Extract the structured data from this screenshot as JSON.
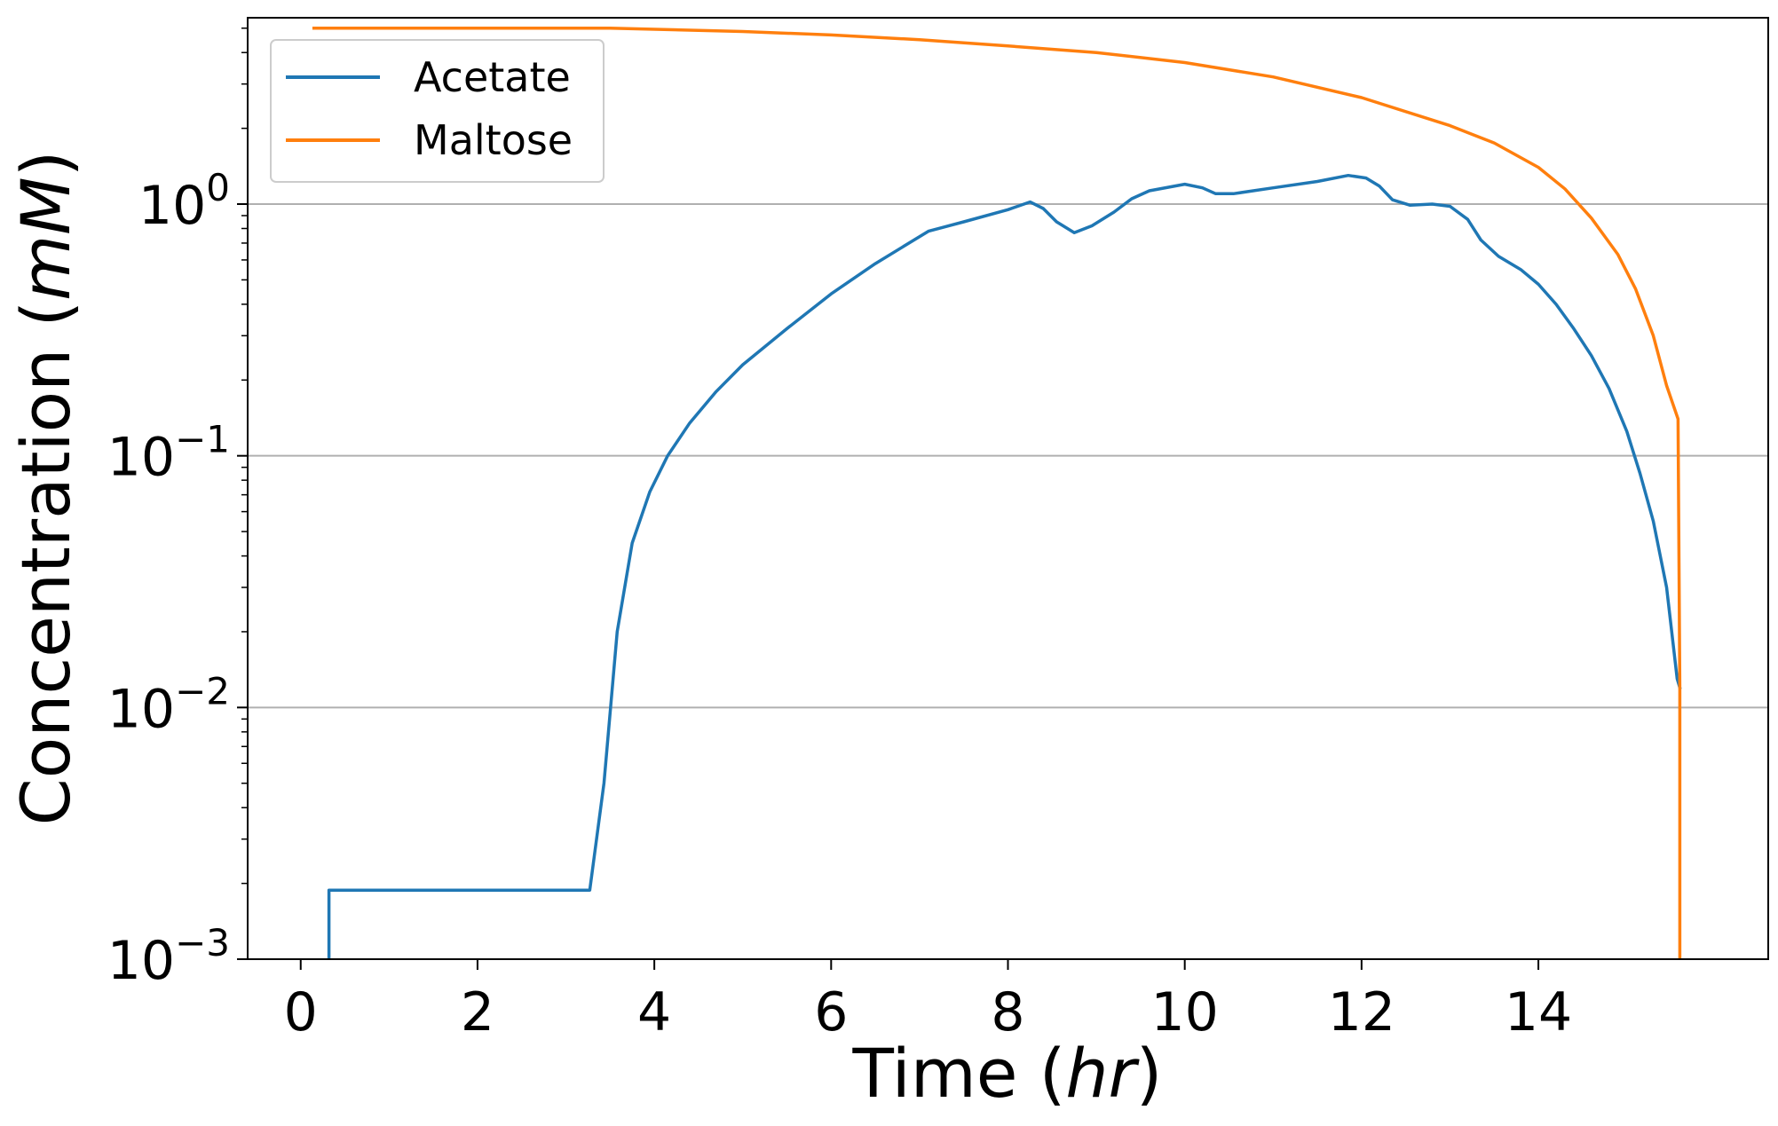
{
  "chart_data": {
    "type": "line",
    "title": "",
    "xlabel": {
      "main": "Time (",
      "italic": "hr",
      "close": ")"
    },
    "ylabel": {
      "main": "Concentration (",
      "italic": "mM",
      "close": ")"
    },
    "xlim": [
      -0.6,
      16.6
    ],
    "ylim": [
      0.001,
      5.5
    ],
    "yscale": "log",
    "xticks": [
      0,
      2,
      4,
      6,
      8,
      10,
      12,
      14
    ],
    "yticks": [
      {
        "value": 0.001,
        "base": "10",
        "exp": "−3"
      },
      {
        "value": 0.01,
        "base": "10",
        "exp": "−2"
      },
      {
        "value": 0.1,
        "base": "10",
        "exp": "−1"
      },
      {
        "value": 1,
        "base": "10",
        "exp": "0"
      }
    ],
    "grid": {
      "y_major": true,
      "x": false
    },
    "legend": "top-left",
    "series": [
      {
        "name": "Acetate",
        "color": "#1f77b4",
        "points": [
          [
            0.32,
            0.001
          ],
          [
            0.32,
            0.00188
          ],
          [
            1.0,
            0.00188
          ],
          [
            2.0,
            0.00188
          ],
          [
            3.27,
            0.00188
          ],
          [
            3.43,
            0.005
          ],
          [
            3.58,
            0.02
          ],
          [
            3.75,
            0.045
          ],
          [
            3.95,
            0.072
          ],
          [
            4.15,
            0.1
          ],
          [
            4.4,
            0.135
          ],
          [
            4.7,
            0.18
          ],
          [
            5.0,
            0.23
          ],
          [
            5.5,
            0.32
          ],
          [
            6.0,
            0.44
          ],
          [
            6.5,
            0.58
          ],
          [
            7.1,
            0.78
          ],
          [
            7.5,
            0.85
          ],
          [
            8.0,
            0.95
          ],
          [
            8.25,
            1.02
          ],
          [
            8.4,
            0.96
          ],
          [
            8.55,
            0.85
          ],
          [
            8.75,
            0.77
          ],
          [
            8.95,
            0.82
          ],
          [
            9.2,
            0.93
          ],
          [
            9.4,
            1.05
          ],
          [
            9.6,
            1.13
          ],
          [
            10.0,
            1.2
          ],
          [
            10.2,
            1.16
          ],
          [
            10.35,
            1.1
          ],
          [
            10.55,
            1.1
          ],
          [
            11.0,
            1.16
          ],
          [
            11.5,
            1.23
          ],
          [
            11.85,
            1.3
          ],
          [
            12.05,
            1.27
          ],
          [
            12.2,
            1.18
          ],
          [
            12.35,
            1.04
          ],
          [
            12.55,
            0.99
          ],
          [
            12.8,
            1.0
          ],
          [
            13.0,
            0.98
          ],
          [
            13.2,
            0.87
          ],
          [
            13.35,
            0.72
          ],
          [
            13.55,
            0.62
          ],
          [
            13.8,
            0.55
          ],
          [
            14.0,
            0.48
          ],
          [
            14.2,
            0.4
          ],
          [
            14.4,
            0.32
          ],
          [
            14.6,
            0.25
          ],
          [
            14.8,
            0.185
          ],
          [
            15.0,
            0.125
          ],
          [
            15.15,
            0.085
          ],
          [
            15.3,
            0.055
          ],
          [
            15.45,
            0.03
          ],
          [
            15.57,
            0.013
          ],
          [
            15.6,
            0.012
          ]
        ]
      },
      {
        "name": "Maltose",
        "color": "#ff7f0e",
        "points": [
          [
            0.15,
            5.0
          ],
          [
            3.5,
            5.0
          ],
          [
            5.0,
            4.85
          ],
          [
            6.0,
            4.7
          ],
          [
            7.0,
            4.5
          ],
          [
            8.0,
            4.25
          ],
          [
            9.0,
            4.0
          ],
          [
            10.0,
            3.65
          ],
          [
            11.0,
            3.2
          ],
          [
            12.0,
            2.65
          ],
          [
            13.0,
            2.05
          ],
          [
            13.5,
            1.75
          ],
          [
            14.0,
            1.4
          ],
          [
            14.3,
            1.15
          ],
          [
            14.6,
            0.88
          ],
          [
            14.9,
            0.63
          ],
          [
            15.1,
            0.46
          ],
          [
            15.3,
            0.3
          ],
          [
            15.45,
            0.19
          ],
          [
            15.58,
            0.14
          ],
          [
            15.6,
            0.012
          ],
          [
            15.6,
            0.001
          ]
        ]
      }
    ]
  }
}
